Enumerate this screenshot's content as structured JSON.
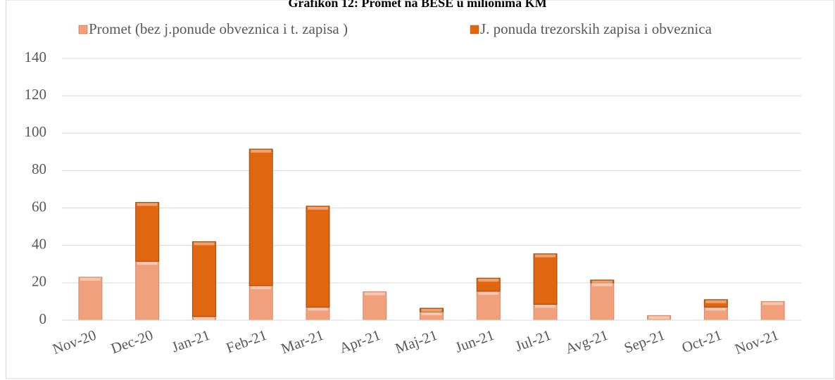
{
  "chart_data": {
    "type": "bar",
    "stacked": true,
    "title": "Grafikon 12: Promet na BESE u milionima KM",
    "categories": [
      "Nov-20",
      "Dec-20",
      "Jan-21",
      "Feb-21",
      "Mar-21",
      "Apr-21",
      "Maj-21",
      "Jun-21",
      "Jul-21",
      "Avg-21",
      "Sep-21",
      "Oct-21",
      "Nov-21"
    ],
    "series": [
      {
        "name": "Promet (bez j.ponude obveznica i t. zapisa )",
        "color": "#f0a07a",
        "values": [
          23,
          31.5,
          2,
          18.5,
          7,
          15.2,
          4.5,
          15.5,
          8.5,
          20,
          2.5,
          7,
          10
        ]
      },
      {
        "name": "J. ponuda  trezorskih zapisa i obveznica",
        "color": "#e0670f",
        "values": [
          0,
          31.5,
          40,
          73,
          54,
          0,
          1.9,
          7,
          27,
          1.5,
          0,
          4,
          0
        ]
      }
    ],
    "ylim": [
      0,
      140
    ],
    "yticks": [
      0,
      20,
      40,
      60,
      80,
      100,
      120,
      140
    ],
    "grid": true,
    "legend": "top"
  }
}
